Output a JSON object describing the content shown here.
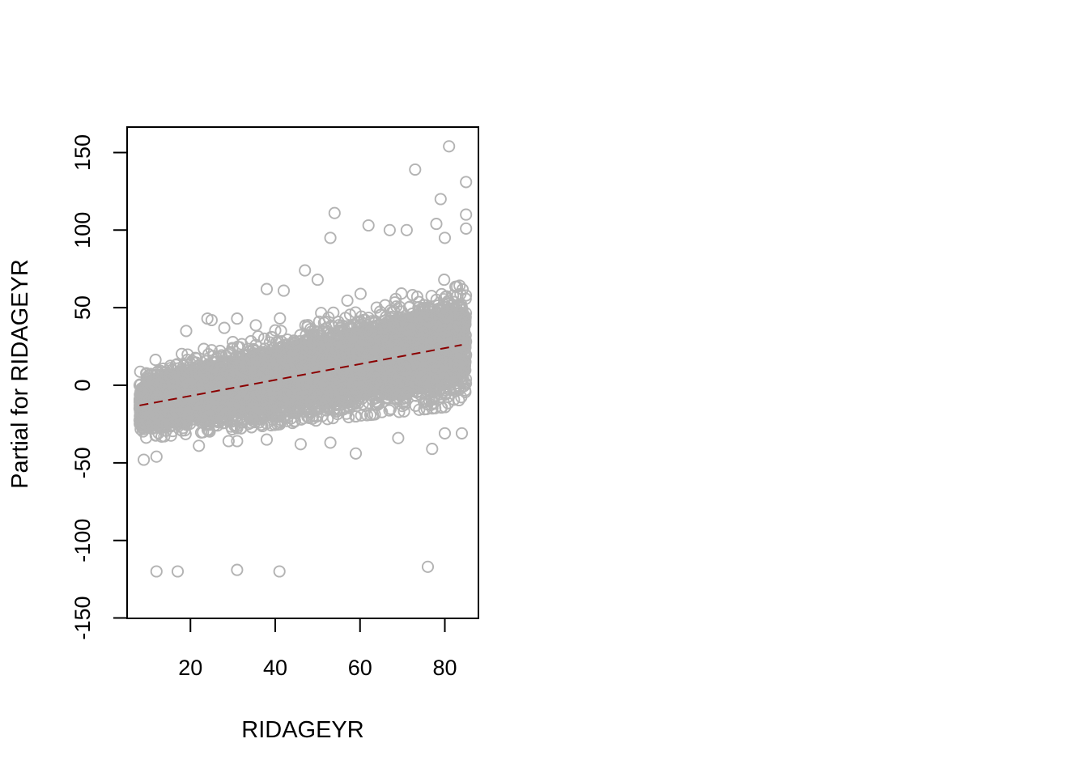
{
  "chart_data": {
    "type": "scatter",
    "title": "",
    "xlabel": "RIDAGEYR",
    "ylabel": "Partial for RIDAGEYR",
    "xlim": [
      5,
      88
    ],
    "ylim": [
      -150,
      165
    ],
    "x_ticks": [
      20,
      40,
      60,
      80
    ],
    "x_tick_labels": [
      "20",
      "40",
      "60",
      "80"
    ],
    "y_ticks": [
      -150,
      -100,
      -50,
      0,
      50,
      100,
      150
    ],
    "y_tick_labels": [
      "-150",
      "-100",
      "-50",
      "0",
      "50",
      "100",
      "150"
    ],
    "grid": false,
    "legend": "none",
    "colors": {
      "points": "#b3b3b3",
      "trend_line": "#8b0000",
      "axes": "#000000"
    },
    "point_cloud": {
      "x_range": [
        8,
        85
      ],
      "n_points": 9000,
      "residual_spread": 28,
      "note_on_density": "dense band of points around the trend line"
    },
    "trend_line": {
      "style": "dashed",
      "points": [
        [
          8,
          -13
        ],
        [
          84,
          26
        ]
      ]
    },
    "outliers": [
      [
        12,
        -120
      ],
      [
        17,
        -120
      ],
      [
        31,
        -119
      ],
      [
        41,
        -120
      ],
      [
        76,
        -117
      ],
      [
        81,
        154
      ],
      [
        73,
        139
      ],
      [
        85,
        131
      ],
      [
        79,
        120
      ],
      [
        54,
        111
      ],
      [
        85,
        110
      ],
      [
        62,
        103
      ],
      [
        78,
        104
      ],
      [
        53,
        95
      ],
      [
        71,
        100
      ],
      [
        67,
        100
      ],
      [
        80,
        95
      ],
      [
        85,
        101
      ],
      [
        38,
        62
      ],
      [
        42,
        61
      ],
      [
        59,
        -44
      ],
      [
        77,
        -41
      ],
      [
        12,
        -46
      ],
      [
        9,
        -48
      ],
      [
        53,
        -37
      ],
      [
        46,
        -38
      ],
      [
        22,
        -39
      ],
      [
        84,
        -31
      ],
      [
        80,
        -31
      ],
      [
        69,
        -34
      ],
      [
        38,
        -35
      ],
      [
        29,
        -36
      ],
      [
        31,
        -36
      ],
      [
        24,
        43
      ],
      [
        31,
        43
      ],
      [
        25,
        42
      ],
      [
        19,
        35
      ],
      [
        28,
        37
      ],
      [
        47,
        74
      ],
      [
        50,
        68
      ]
    ]
  }
}
